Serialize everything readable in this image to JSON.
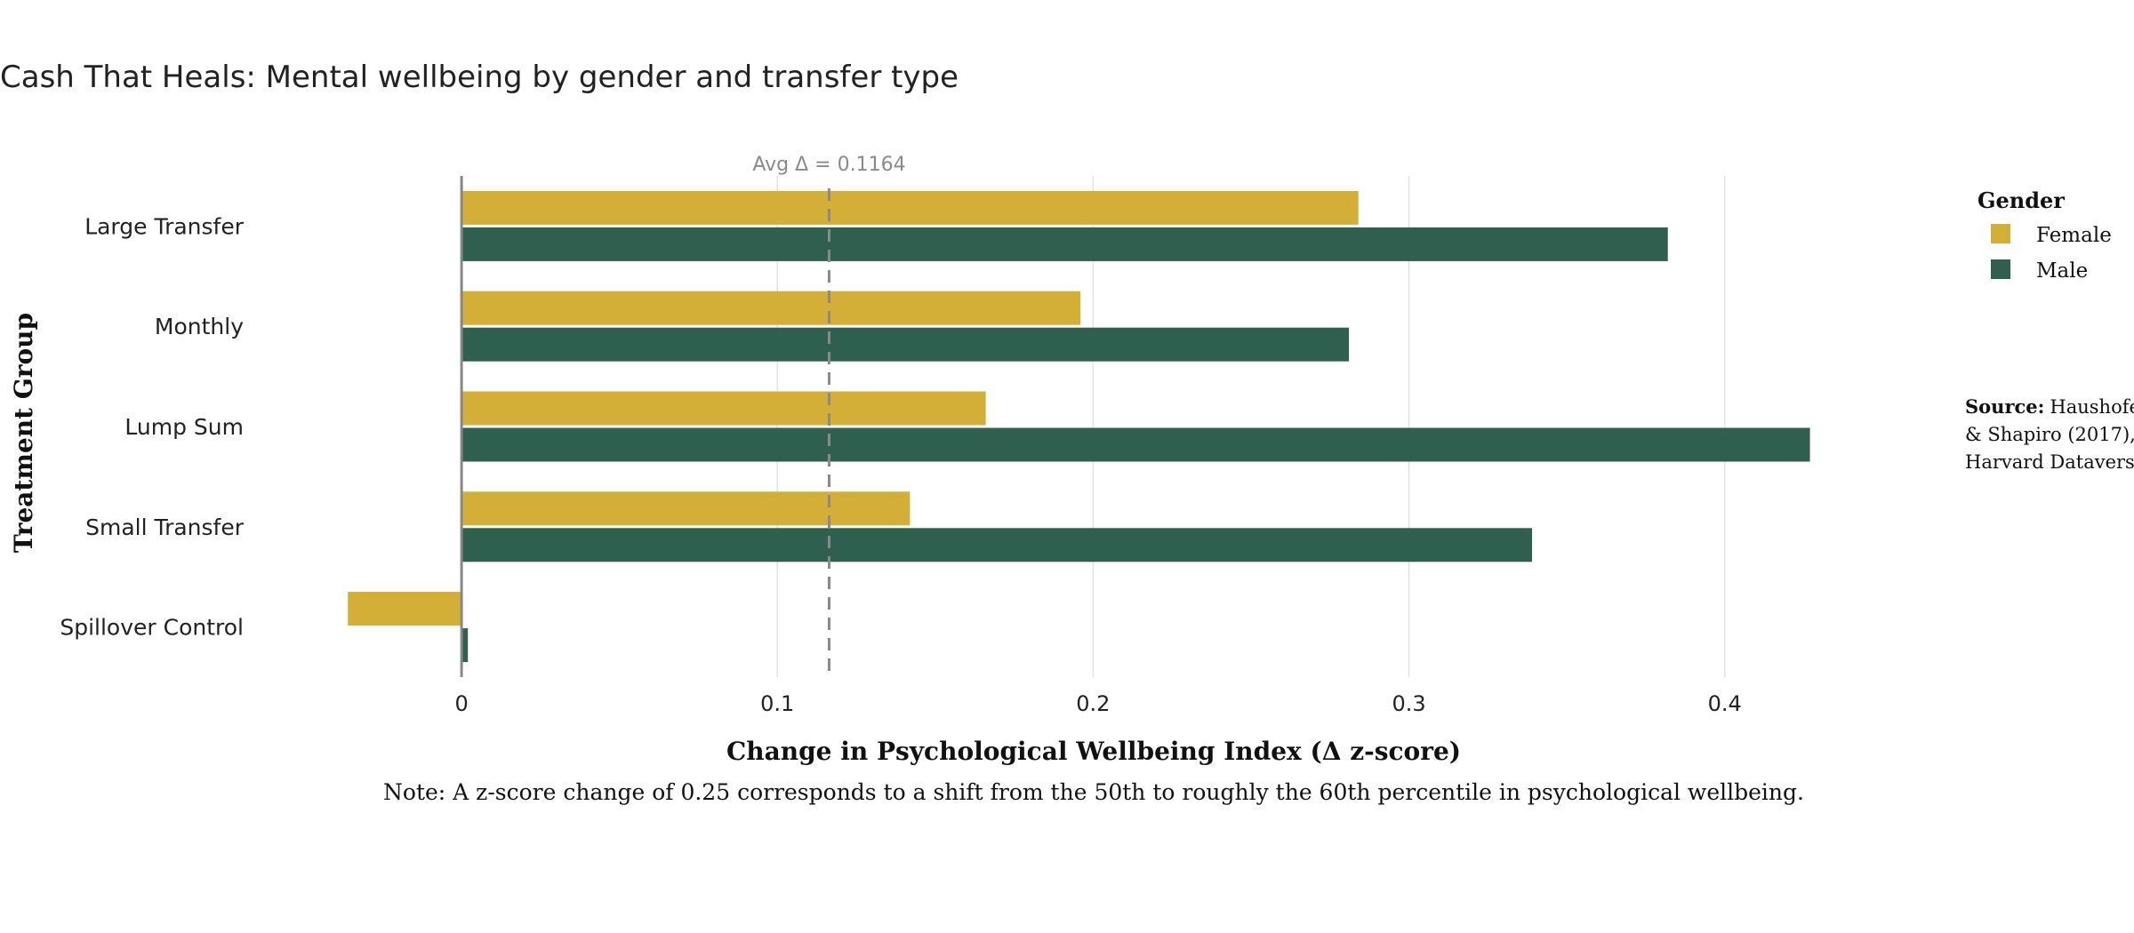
{
  "chart_data": {
    "type": "bar",
    "orientation": "horizontal",
    "title": "Cash That Heals: Mental wellbeing by gender and transfer type",
    "xlabel": "Change in Psychological Wellbeing Index (Δ z-score)",
    "ylabel": "Treatment Group",
    "categories": [
      "Large Transfer",
      "Monthly",
      "Lump Sum",
      "Small Transfer",
      "Spillover Control"
    ],
    "series": [
      {
        "name": "Female",
        "color": "#D4AF37",
        "values": [
          0.284,
          0.196,
          0.166,
          0.142,
          -0.036
        ]
      },
      {
        "name": "Male",
        "color": "#2F5F4F",
        "values": [
          0.382,
          0.281,
          0.427,
          0.339,
          0.002
        ]
      }
    ],
    "xlim": [
      -0.06,
      0.455
    ],
    "xticks": [
      0,
      0.1,
      0.2,
      0.3,
      0.4
    ],
    "xtick_labels": [
      "0",
      "0.1",
      "0.2",
      "0.3",
      "0.4"
    ],
    "grid": true,
    "reference_line": {
      "value": 0.1164,
      "label": "Avg Δ = 0.1164"
    },
    "legend": {
      "title": "Gender",
      "position": "top-right"
    },
    "note": "Note: A z-score change of 0.25 corresponds to a shift from the 50th to roughly the 60th percentile in psychological wellbeing.",
    "source": {
      "label": "Source:",
      "lines": [
        "Haushofer",
        "& Shapiro (2017),",
        "Harvard Dataverse"
      ]
    }
  }
}
